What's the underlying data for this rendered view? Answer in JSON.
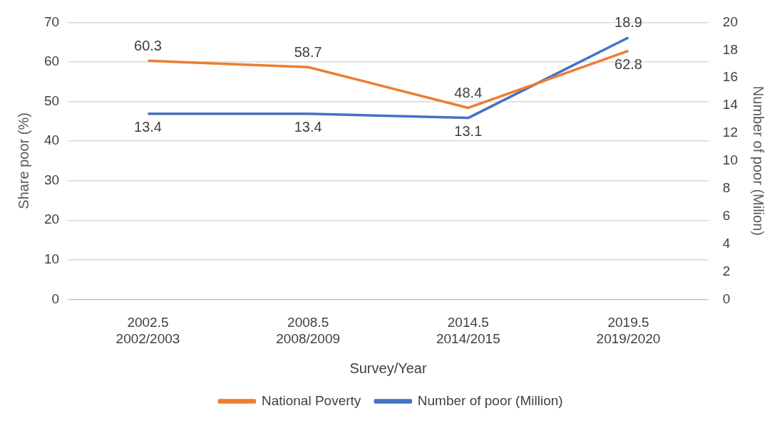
{
  "chart_data": {
    "type": "line",
    "categories": [
      "2002.5\n2002/2003",
      "2008.5\n2008/2009",
      "2014.5\n2014/2015",
      "2019.5\n2019/2020"
    ],
    "series": [
      {
        "name": "National Poverty",
        "color": "#ed7d31",
        "values": [
          60.3,
          58.7,
          48.4,
          62.8
        ]
      },
      {
        "name": "Number of poor (Million)",
        "color": "#4472c4",
        "values": [
          13.4,
          13.4,
          13.1,
          18.9
        ],
        "axis": "y2"
      }
    ],
    "xlabel": "Survey/Year",
    "ylabel": "Share poor (%)",
    "y2label": "Number of poor (Milion)",
    "ylim": [
      0,
      70
    ],
    "yticks": [
      0,
      10,
      20,
      30,
      40,
      50,
      60,
      70
    ],
    "y2lim": [
      0,
      20
    ],
    "y2ticks": [
      0,
      2,
      4,
      6,
      8,
      10,
      12,
      14,
      16,
      18,
      20
    ],
    "grid": "y",
    "legend": "bottom",
    "data_labels": true,
    "marker": "none",
    "line_style": "solid"
  }
}
